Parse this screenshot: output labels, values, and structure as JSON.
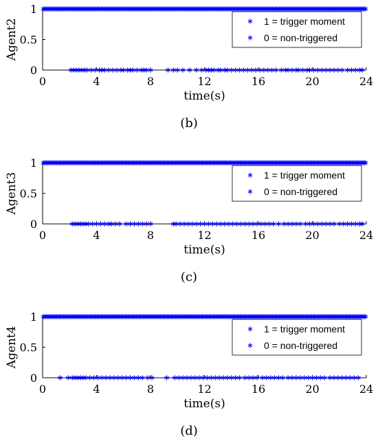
{
  "chart_data": [
    {
      "type": "scatter",
      "panel_label": "(b)",
      "xlabel": "time(s)",
      "ylabel": "Agent2",
      "xlim": [
        0,
        24
      ],
      "ylim": [
        0,
        1
      ],
      "xticks": [
        "0",
        "4",
        "8",
        "12",
        "16",
        "20",
        "24"
      ],
      "yticks": [
        "0",
        "0.5",
        "1"
      ],
      "legend_position": "top-right",
      "marker_color": "#0000ff",
      "series": [
        {
          "name": "1 = trigger moment",
          "y": 1,
          "x": [
            0.05,
            0.15,
            0.25,
            0.35,
            0.45,
            0.55,
            0.65,
            0.75,
            0.85,
            0.95,
            1.05,
            1.15,
            1.25,
            1.35,
            1.45,
            1.55,
            1.65,
            1.75,
            1.85,
            1.95,
            2.05,
            2.15,
            2.25,
            2.35,
            2.45,
            2.55,
            2.65,
            2.75,
            2.85,
            2.95,
            3.05,
            3.15,
            3.25,
            3.35,
            3.45,
            3.55,
            3.65,
            3.75,
            3.85,
            3.95,
            4.05,
            4.15,
            4.25,
            4.35,
            4.45,
            4.55,
            4.65,
            4.75,
            4.85,
            4.95,
            5.05,
            5.15,
            5.25,
            5.35,
            5.45,
            5.55,
            5.65,
            5.75,
            5.85,
            5.95,
            6.05,
            6.15,
            6.25,
            6.35,
            6.45,
            6.55,
            6.65,
            6.75,
            6.85,
            6.95,
            7.05,
            7.15,
            7.25,
            7.35,
            7.45,
            7.55,
            7.65,
            7.75,
            7.85,
            7.95,
            8.05,
            8.15,
            8.25,
            8.35,
            8.45,
            8.55,
            8.65,
            8.75,
            8.85,
            8.95,
            9.05,
            9.15,
            9.25,
            9.35,
            9.45,
            9.55,
            9.65,
            9.75,
            9.85,
            9.95,
            10.05,
            10.15,
            10.25,
            10.35,
            10.45,
            10.55,
            10.65,
            10.75,
            10.85,
            10.95,
            11.05,
            11.15,
            11.25,
            11.35,
            11.45,
            11.55,
            11.65,
            11.75,
            11.85,
            11.95,
            12.05,
            12.15,
            12.25,
            12.35,
            12.45,
            12.55,
            12.65,
            12.75,
            12.85,
            12.95,
            13.05,
            13.15,
            13.25,
            13.35,
            13.45,
            13.55,
            13.65,
            13.75,
            13.85,
            13.95,
            14.05,
            14.15,
            14.25,
            14.35,
            14.45,
            14.55,
            14.65,
            14.75,
            14.85,
            14.95,
            15.05,
            15.15,
            15.25,
            15.35,
            15.45,
            15.55,
            15.65,
            15.75,
            15.85,
            15.95,
            16.05,
            16.15,
            16.25,
            16.35,
            16.45,
            16.55,
            16.65,
            16.75,
            16.85,
            16.95,
            17.05,
            17.15,
            17.25,
            17.35,
            17.45,
            17.55,
            17.65,
            17.75,
            17.85,
            17.95,
            18.05,
            18.15,
            18.25,
            18.35,
            18.45,
            18.55,
            18.65,
            18.75,
            18.85,
            18.95,
            19.05,
            19.15,
            19.25,
            19.35,
            19.45,
            19.55,
            19.65,
            19.75,
            19.85,
            19.95,
            20.05,
            20.15,
            20.25,
            20.35,
            20.45,
            20.55,
            20.65,
            20.75,
            20.85,
            20.95,
            21.05,
            21.15,
            21.25,
            21.35,
            21.45,
            21.55,
            21.65,
            21.75,
            21.85,
            21.95,
            22.05,
            22.15,
            22.25,
            22.35,
            22.45,
            22.55,
            22.65,
            22.75,
            22.85,
            22.95,
            23.05,
            23.15,
            23.25,
            23.35,
            23.45,
            23.55,
            23.65,
            23.75,
            23.85,
            23.95
          ]
        },
        {
          "name": "0 = non-triggered",
          "y": 0,
          "x": [
            2.1,
            2.3,
            2.5,
            2.7,
            2.9,
            3.1,
            3.3,
            3.6,
            3.9,
            4.2,
            4.4,
            4.6,
            4.9,
            5.2,
            5.5,
            5.8,
            6.0,
            6.3,
            6.5,
            6.7,
            7.0,
            7.3,
            7.5,
            7.7,
            8.0,
            9.3,
            9.7,
            10.0,
            10.4,
            10.9,
            11.4,
            11.8,
            12.1,
            12.3,
            12.5,
            12.7,
            13.0,
            13.2,
            13.5,
            13.7,
            14.0,
            14.3,
            14.6,
            14.9,
            15.2,
            15.5,
            15.8,
            16.1,
            16.4,
            16.7,
            17.0,
            17.3,
            17.7,
            18.0,
            18.2,
            18.5,
            18.8,
            19.0,
            19.3,
            19.6,
            19.8,
            20.1,
            20.4,
            20.7,
            21.0,
            21.3,
            21.6,
            21.9,
            22.2,
            22.6,
            22.9,
            23.2,
            23.5,
            23.7
          ]
        }
      ]
    },
    {
      "type": "scatter",
      "panel_label": "(c)",
      "xlabel": "time(s)",
      "ylabel": "Agent3",
      "xlim": [
        0,
        24
      ],
      "ylim": [
        0,
        1
      ],
      "xticks": [
        "0",
        "4",
        "8",
        "12",
        "16",
        "20",
        "24"
      ],
      "yticks": [
        "0",
        "0.5",
        "1"
      ],
      "legend_position": "top-right",
      "marker_color": "#0000ff",
      "series": [
        {
          "name": "1 = trigger moment",
          "y": 1,
          "x": [
            0.05,
            0.15,
            0.25,
            0.35,
            0.45,
            0.55,
            0.65,
            0.75,
            0.85,
            0.95,
            1.05,
            1.15,
            1.25,
            1.35,
            1.45,
            1.55,
            1.65,
            1.75,
            1.85,
            1.95,
            2.05,
            2.15,
            2.25,
            2.35,
            2.45,
            2.55,
            2.65,
            2.75,
            2.85,
            2.95,
            3.05,
            3.15,
            3.25,
            3.35,
            3.45,
            3.55,
            3.65,
            3.75,
            3.85,
            3.95,
            4.05,
            4.15,
            4.25,
            4.35,
            4.45,
            4.55,
            4.65,
            4.75,
            4.85,
            4.95,
            5.05,
            5.15,
            5.25,
            5.35,
            5.45,
            5.55,
            5.65,
            5.75,
            5.85,
            5.95,
            6.05,
            6.15,
            6.25,
            6.35,
            6.45,
            6.55,
            6.65,
            6.75,
            6.85,
            6.95,
            7.05,
            7.15,
            7.25,
            7.35,
            7.45,
            7.55,
            7.65,
            7.75,
            7.85,
            7.95,
            8.05,
            8.15,
            8.25,
            8.35,
            8.45,
            8.55,
            8.65,
            8.75,
            8.85,
            8.95,
            9.05,
            9.15,
            9.25,
            9.35,
            9.45,
            9.55,
            9.65,
            9.75,
            9.85,
            9.95,
            10.05,
            10.15,
            10.25,
            10.35,
            10.45,
            10.55,
            10.65,
            10.75,
            10.85,
            10.95,
            11.05,
            11.15,
            11.25,
            11.35,
            11.45,
            11.55,
            11.65,
            11.75,
            11.85,
            11.95,
            12.05,
            12.15,
            12.25,
            12.35,
            12.45,
            12.55,
            12.65,
            12.75,
            12.85,
            12.95,
            13.05,
            13.15,
            13.25,
            13.35,
            13.45,
            13.55,
            13.65,
            13.75,
            13.85,
            13.95,
            14.05,
            14.15,
            14.25,
            14.35,
            14.45,
            14.55,
            14.65,
            14.75,
            14.85,
            14.95,
            15.05,
            15.15,
            15.25,
            15.35,
            15.45,
            15.55,
            15.65,
            15.75,
            15.85,
            15.95,
            16.05,
            16.15,
            16.25,
            16.35,
            16.45,
            16.55,
            16.65,
            16.75,
            16.85,
            16.95,
            17.05,
            17.15,
            17.25,
            17.35,
            17.45,
            17.55,
            17.65,
            17.75,
            17.85,
            17.95,
            18.05,
            18.15,
            18.25,
            18.35,
            18.45,
            18.55,
            18.65,
            18.75,
            18.85,
            18.95,
            19.05,
            19.15,
            19.25,
            19.35,
            19.45,
            19.55,
            19.65,
            19.75,
            19.85,
            19.95,
            20.05,
            20.15,
            20.25,
            20.35,
            20.45,
            20.55,
            20.65,
            20.75,
            20.85,
            20.95,
            21.05,
            21.15,
            21.25,
            21.35,
            21.45,
            21.55,
            21.65,
            21.75,
            21.85,
            21.95,
            22.05,
            22.15,
            22.25,
            22.35,
            22.45,
            22.55,
            22.65,
            22.75,
            22.85,
            22.95,
            23.05,
            23.15,
            23.25,
            23.35,
            23.45,
            23.55,
            23.65,
            23.75,
            23.85,
            23.95
          ]
        },
        {
          "name": "0 = non-triggered",
          "y": 0,
          "x": [
            2.2,
            2.4,
            2.6,
            2.8,
            3.0,
            3.2,
            3.4,
            3.7,
            4.0,
            4.3,
            4.6,
            4.9,
            5.1,
            5.4,
            5.7,
            6.2,
            6.5,
            6.8,
            7.1,
            7.4,
            7.7,
            8.0,
            9.7,
            9.9,
            10.2,
            10.5,
            10.8,
            11.1,
            11.4,
            11.7,
            12.0,
            12.3,
            12.6,
            12.9,
            13.2,
            13.5,
            13.8,
            14.1,
            14.4,
            14.7,
            15.0,
            15.3,
            15.6,
            15.9,
            16.2,
            16.5,
            16.8,
            17.1,
            17.5,
            17.9,
            18.2,
            18.5,
            18.8,
            19.1,
            19.5,
            19.8,
            20.1,
            20.4,
            20.7,
            21.0,
            21.3,
            21.6,
            22.0,
            22.3,
            22.6,
            22.9,
            23.2,
            23.5,
            23.7
          ]
        }
      ]
    },
    {
      "type": "scatter",
      "panel_label": "(d)",
      "xlabel": "time(s)",
      "ylabel": "Agent4",
      "xlim": [
        0,
        24
      ],
      "ylim": [
        0,
        1
      ],
      "xticks": [
        "0",
        "4",
        "8",
        "12",
        "16",
        "20",
        "24"
      ],
      "yticks": [
        "0",
        "0.5",
        "1"
      ],
      "legend_position": "top-right",
      "marker_color": "#0000ff",
      "series": [
        {
          "name": "1 = trigger moment",
          "y": 1,
          "x": [
            0.05,
            0.15,
            0.25,
            0.35,
            0.45,
            0.55,
            0.65,
            0.75,
            0.85,
            0.95,
            1.05,
            1.15,
            1.25,
            1.35,
            1.45,
            1.55,
            1.65,
            1.75,
            1.85,
            1.95,
            2.05,
            2.15,
            2.25,
            2.35,
            2.45,
            2.55,
            2.65,
            2.75,
            2.85,
            2.95,
            3.05,
            3.15,
            3.25,
            3.35,
            3.45,
            3.55,
            3.65,
            3.75,
            3.85,
            3.95,
            4.05,
            4.15,
            4.25,
            4.35,
            4.45,
            4.55,
            4.65,
            4.75,
            4.85,
            4.95,
            5.05,
            5.15,
            5.25,
            5.35,
            5.45,
            5.55,
            5.65,
            5.75,
            5.85,
            5.95,
            6.05,
            6.15,
            6.25,
            6.35,
            6.45,
            6.55,
            6.65,
            6.75,
            6.85,
            6.95,
            7.05,
            7.15,
            7.25,
            7.35,
            7.45,
            7.55,
            7.65,
            7.75,
            7.85,
            7.95,
            8.05,
            8.15,
            8.25,
            8.35,
            8.45,
            8.55,
            8.65,
            8.75,
            8.85,
            8.95,
            9.05,
            9.15,
            9.25,
            9.35,
            9.45,
            9.55,
            9.65,
            9.75,
            9.85,
            9.95,
            10.05,
            10.15,
            10.25,
            10.35,
            10.45,
            10.55,
            10.65,
            10.75,
            10.85,
            10.95,
            11.05,
            11.15,
            11.25,
            11.35,
            11.45,
            11.55,
            11.65,
            11.75,
            11.85,
            11.95,
            12.05,
            12.15,
            12.25,
            12.35,
            12.45,
            12.55,
            12.65,
            12.75,
            12.85,
            12.95,
            13.05,
            13.15,
            13.25,
            13.35,
            13.45,
            13.55,
            13.65,
            13.75,
            13.85,
            13.95,
            14.05,
            14.15,
            14.25,
            14.35,
            14.45,
            14.55,
            14.65,
            14.75,
            14.85,
            14.95,
            15.05,
            15.15,
            15.25,
            15.35,
            15.45,
            15.55,
            15.65,
            15.75,
            15.85,
            15.95,
            16.05,
            16.15,
            16.25,
            16.35,
            16.45,
            16.55,
            16.65,
            16.75,
            16.85,
            16.95,
            17.05,
            17.15,
            17.25,
            17.35,
            17.45,
            17.55,
            17.65,
            17.75,
            17.85,
            17.95,
            18.05,
            18.15,
            18.25,
            18.35,
            18.45,
            18.55,
            18.65,
            18.75,
            18.85,
            18.95,
            19.05,
            19.15,
            19.25,
            19.35,
            19.45,
            19.55,
            19.65,
            19.75,
            19.85,
            19.95,
            20.05,
            20.15,
            20.25,
            20.35,
            20.45,
            20.55,
            20.65,
            20.75,
            20.85,
            20.95,
            21.05,
            21.15,
            21.25,
            21.35,
            21.45,
            21.55,
            21.65,
            21.75,
            21.85,
            21.95,
            22.05,
            22.15,
            22.25,
            22.35,
            22.45,
            22.55,
            22.65,
            22.75,
            22.85,
            22.95,
            23.05,
            23.15,
            23.25,
            23.35,
            23.45,
            23.55,
            23.65,
            23.75,
            23.85,
            23.95
          ]
        },
        {
          "name": "0 = non-triggered",
          "y": 0,
          "x": [
            1.3,
            1.9,
            2.2,
            2.4,
            2.6,
            2.8,
            3.0,
            3.2,
            3.5,
            3.8,
            4.1,
            4.4,
            4.7,
            5.0,
            5.3,
            5.6,
            5.9,
            6.2,
            6.5,
            6.8,
            7.1,
            7.4,
            7.8,
            8.1,
            9.2,
            9.8,
            10.1,
            10.4,
            10.7,
            11.0,
            11.3,
            11.6,
            11.9,
            12.2,
            12.5,
            12.8,
            13.1,
            13.4,
            13.7,
            14.0,
            14.3,
            14.6,
            15.0,
            15.3,
            15.6,
            15.9,
            16.3,
            16.6,
            16.9,
            17.2,
            17.5,
            17.8,
            18.2,
            18.5,
            18.8,
            19.1,
            19.4,
            19.7,
            20.0,
            20.3,
            20.6,
            20.9,
            21.3,
            21.6,
            21.9,
            22.2,
            22.5,
            22.8,
            23.1,
            23.4
          ]
        }
      ]
    }
  ]
}
